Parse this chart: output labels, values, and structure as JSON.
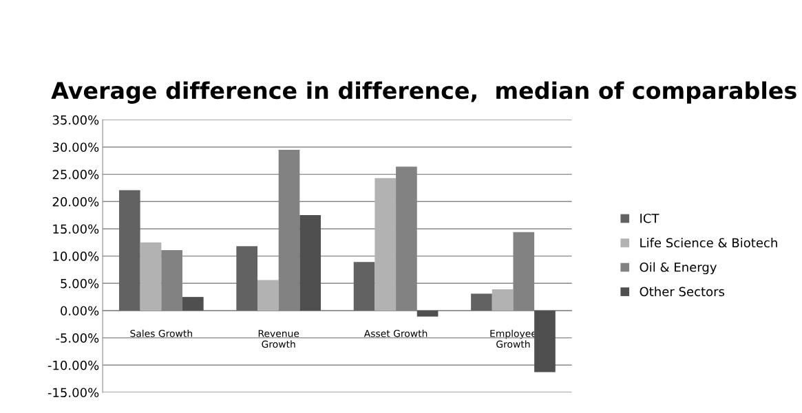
{
  "chart_data": {
    "type": "bar",
    "title": "Average difference in difference,  median of comparables",
    "categories": [
      "Sales Growth",
      "Revenue\nGrowth",
      "Asset Growth",
      "Employee\nGrowth"
    ],
    "series": [
      {
        "name": "ICT",
        "color": "#626262",
        "values": [
          22.1,
          11.8,
          8.9,
          3.1
        ]
      },
      {
        "name": "Life Science & Biotech",
        "color": "#b2b2b2",
        "values": [
          12.5,
          5.6,
          24.3,
          3.9
        ]
      },
      {
        "name": "Oil & Energy",
        "color": "#828282",
        "values": [
          11.1,
          29.5,
          26.4,
          14.4
        ]
      },
      {
        "name": "Other Sectors",
        "color": "#4f4f4f",
        "values": [
          2.5,
          17.5,
          -1.1,
          -11.3
        ]
      }
    ],
    "ylim": [
      -15,
      35
    ],
    "yticks": [
      {
        "value": -15,
        "label": "-15.00%"
      },
      {
        "value": -10,
        "label": "-10.00%"
      },
      {
        "value": -5,
        "label": "-5.00%"
      },
      {
        "value": 0,
        "label": "0.00%"
      },
      {
        "value": 5,
        "label": "5.00%"
      },
      {
        "value": 10,
        "label": "10.00%"
      },
      {
        "value": 15,
        "label": "15.00%"
      },
      {
        "value": 20,
        "label": "20.00%"
      },
      {
        "value": 25,
        "label": "25.00%"
      },
      {
        "value": 30,
        "label": "30.00%"
      },
      {
        "value": 35,
        "label": "35.00%"
      }
    ],
    "grid": "y",
    "legend": "right"
  }
}
